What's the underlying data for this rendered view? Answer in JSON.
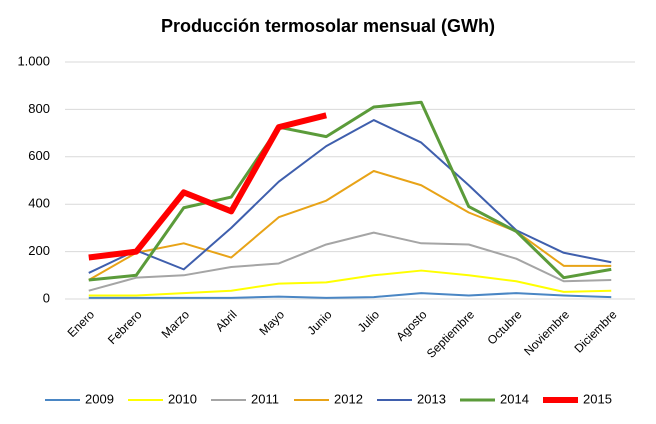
{
  "chart_data": {
    "type": "line",
    "title": "Producción termosolar mensual (GWh)",
    "categories": [
      "Enero",
      "Febrero",
      "Marzo",
      "Abril",
      "Mayo",
      "Junio",
      "Julio",
      "Agosto",
      "Septiembre",
      "Octubre",
      "Noviembre",
      "Diciembre"
    ],
    "ylim": [
      0,
      1000
    ],
    "yticks": [
      0,
      200,
      400,
      600,
      800,
      {
        "value": 1000,
        "label": "1.000"
      }
    ],
    "grid": true,
    "legend": "bottom",
    "series": [
      {
        "name": "2009",
        "color": "#4a86c4",
        "width": 2,
        "values": [
          5,
          5,
          5,
          5,
          10,
          5,
          8,
          25,
          15,
          25,
          15,
          8
        ]
      },
      {
        "name": "2010",
        "color": "#ffff00",
        "width": 2,
        "values": [
          15,
          15,
          25,
          35,
          65,
          70,
          100,
          120,
          100,
          75,
          30,
          35
        ]
      },
      {
        "name": "2011",
        "color": "#a5a5a5",
        "width": 2,
        "values": [
          35,
          90,
          100,
          135,
          150,
          230,
          280,
          235,
          230,
          170,
          75,
          80
        ]
      },
      {
        "name": "2012",
        "color": "#e8a317",
        "width": 2,
        "values": [
          80,
          195,
          235,
          175,
          345,
          415,
          540,
          480,
          365,
          285,
          140,
          140
        ]
      },
      {
        "name": "2013",
        "color": "#3f5fad",
        "width": 2,
        "values": [
          110,
          205,
          125,
          300,
          495,
          645,
          755,
          660,
          480,
          290,
          195,
          155
        ]
      },
      {
        "name": "2014",
        "color": "#5b9b3a",
        "width": 3,
        "values": [
          80,
          100,
          385,
          430,
          725,
          685,
          810,
          830,
          390,
          285,
          90,
          125
        ]
      },
      {
        "name": "2015",
        "color": "#ff0000",
        "width": 6,
        "values": [
          175,
          200,
          450,
          370,
          725,
          775,
          null,
          null,
          null,
          null,
          null,
          null
        ]
      }
    ]
  }
}
